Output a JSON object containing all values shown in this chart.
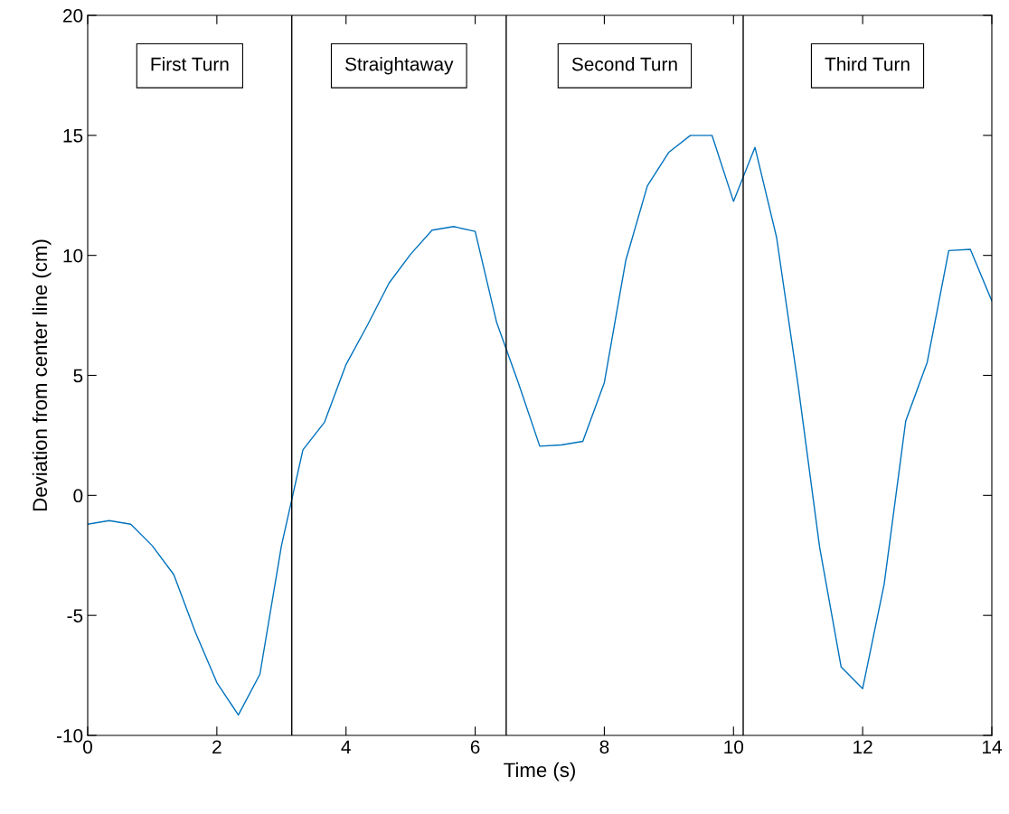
{
  "chart_data": {
    "type": "line",
    "xlabel": "Time (s)",
    "ylabel": "Deviation from center line (cm)",
    "x": [
      0,
      0.333,
      0.667,
      1.0,
      1.333,
      1.667,
      2.0,
      2.333,
      2.667,
      3.0,
      3.333,
      3.667,
      4.0,
      4.333,
      4.667,
      5.0,
      5.333,
      5.667,
      6.0,
      6.333,
      6.667,
      7.0,
      7.333,
      7.667,
      8.0,
      8.333,
      8.667,
      9.0,
      9.333,
      9.667,
      10.0,
      10.333,
      10.667,
      11.0,
      11.333,
      11.667,
      12.0,
      12.333,
      12.667,
      13.0,
      13.333,
      13.667,
      14.0
    ],
    "series": [
      {
        "color": "#0072bd",
        "values": [
          -1.2,
          -1.05,
          -1.2,
          -2.1,
          -3.3,
          -5.7,
          -7.8,
          -9.15,
          -7.45,
          -2.1,
          1.9,
          3.05,
          5.45,
          7.1,
          8.85,
          10.05,
          11.05,
          11.2,
          11.0,
          7.2,
          4.7,
          2.05,
          2.1,
          2.25,
          4.7,
          9.8,
          12.9,
          14.3,
          15.0,
          15.0,
          12.25,
          14.5,
          10.75,
          4.6,
          -2.15,
          -7.15,
          -8.05,
          -3.7,
          3.1,
          5.55,
          10.2,
          10.25,
          8.1
        ]
      }
    ],
    "xlim": [
      0,
      14
    ],
    "ylim": [
      -10,
      20
    ],
    "xticks": [
      0,
      2,
      4,
      6,
      8,
      10,
      12,
      14
    ],
    "yticks": [
      -10,
      -5,
      0,
      5,
      10,
      15,
      20
    ],
    "ref_lines": [
      {
        "axis": "x",
        "value": 3.16,
        "color": "#000000"
      },
      {
        "axis": "x",
        "value": 6.48,
        "color": "#000000"
      },
      {
        "axis": "x",
        "value": 10.15,
        "color": "#000000"
      }
    ],
    "annotations": [
      "First Turn",
      "Straightaway",
      "Second Turn",
      "Third Turn"
    ],
    "grid": false,
    "legend": false,
    "marker": "none",
    "line_style": "solid"
  }
}
